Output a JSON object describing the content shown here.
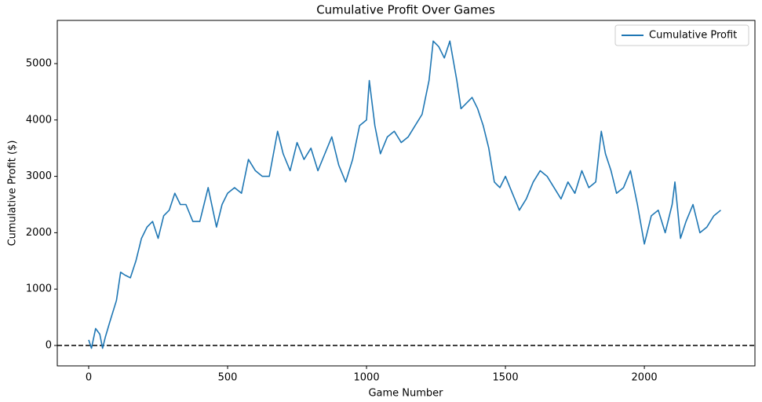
{
  "chart_data": {
    "type": "line",
    "title": "Cumulative Profit Over Games",
    "xlabel": "Game Number",
    "ylabel": "Cumulative Profit ($)",
    "x": [
      0,
      10,
      25,
      40,
      50,
      60,
      75,
      100,
      115,
      130,
      150,
      170,
      190,
      210,
      230,
      250,
      270,
      290,
      310,
      330,
      350,
      375,
      400,
      430,
      460,
      480,
      500,
      525,
      550,
      575,
      600,
      625,
      650,
      680,
      700,
      725,
      750,
      775,
      800,
      825,
      850,
      875,
      900,
      925,
      950,
      975,
      1000,
      1010,
      1030,
      1050,
      1075,
      1100,
      1125,
      1150,
      1175,
      1200,
      1225,
      1240,
      1260,
      1280,
      1300,
      1325,
      1340,
      1360,
      1380,
      1400,
      1420,
      1440,
      1460,
      1480,
      1500,
      1525,
      1550,
      1575,
      1600,
      1625,
      1650,
      1675,
      1700,
      1725,
      1750,
      1775,
      1800,
      1825,
      1845,
      1860,
      1880,
      1900,
      1925,
      1950,
      1975,
      2000,
      2025,
      2050,
      2075,
      2100,
      2110,
      2130,
      2150,
      2175,
      2200,
      2225,
      2250,
      2275
    ],
    "series": [
      {
        "name": "Cumulative Profit",
        "color": "#1f77b4",
        "values": [
          100,
          -50,
          300,
          200,
          -50,
          150,
          400,
          800,
          1300,
          1250,
          1200,
          1500,
          1900,
          2100,
          2200,
          1900,
          2300,
          2400,
          2700,
          2500,
          2500,
          2200,
          2200,
          2800,
          2100,
          2500,
          2700,
          2800,
          2700,
          3300,
          3100,
          3000,
          3000,
          3800,
          3400,
          3100,
          3600,
          3300,
          3500,
          3100,
          3400,
          3700,
          3200,
          2900,
          3300,
          3900,
          4000,
          4700,
          3900,
          3400,
          3700,
          3800,
          3600,
          3700,
          3900,
          4100,
          4700,
          5400,
          5300,
          5100,
          5400,
          4700,
          4200,
          4300,
          4400,
          4200,
          3900,
          3500,
          2900,
          2800,
          3000,
          2700,
          2400,
          2600,
          2900,
          3100,
          3000,
          2800,
          2600,
          2900,
          2700,
          3100,
          2800,
          2900,
          3800,
          3400,
          3100,
          2700,
          2800,
          3100,
          2500,
          1800,
          2300,
          2400,
          2000,
          2500,
          2900,
          1900,
          2200,
          2500,
          2000,
          2100,
          2300,
          2400
        ]
      }
    ],
    "reference_line": {
      "y": 0,
      "color": "#000000",
      "style": "dashed"
    },
    "xlim": [
      -113,
      2398
    ],
    "ylim": [
      -362,
      5766
    ],
    "xticks": [
      0,
      500,
      1000,
      1500,
      2000
    ],
    "yticks": [
      0,
      1000,
      2000,
      3000,
      4000,
      5000
    ],
    "legend": "upper right",
    "grid": false
  }
}
